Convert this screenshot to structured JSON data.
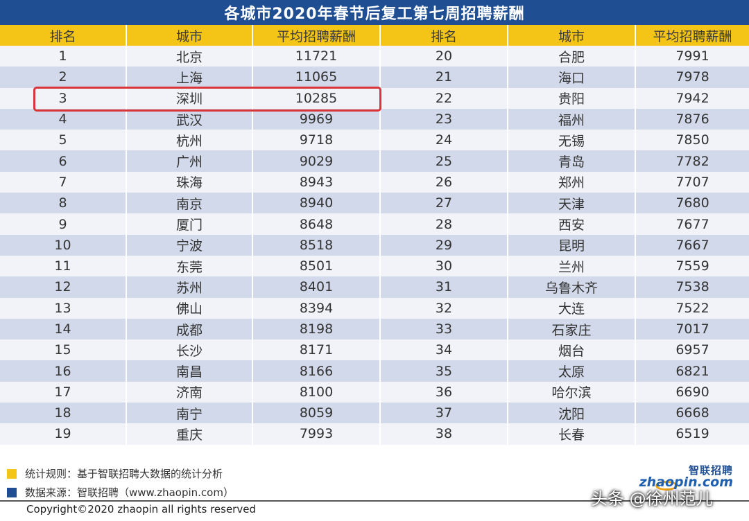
{
  "title": "各城市2020年春节后复工第七周招聘薪酬",
  "columns": [
    "排名",
    "城市",
    "平均招聘薪酬",
    "排名",
    "城市",
    "平均招聘薪酬"
  ],
  "rows": [
    [
      "1",
      "北京",
      "11721",
      "20",
      "合肥",
      "7991"
    ],
    [
      "2",
      "上海",
      "11065",
      "21",
      "海口",
      "7978"
    ],
    [
      "3",
      "深圳",
      "10285",
      "22",
      "贵阳",
      "7942"
    ],
    [
      "4",
      "武汉",
      "9969",
      "23",
      "福州",
      "7876"
    ],
    [
      "5",
      "杭州",
      "9718",
      "24",
      "无锡",
      "7850"
    ],
    [
      "6",
      "广州",
      "9029",
      "25",
      "青岛",
      "7782"
    ],
    [
      "7",
      "珠海",
      "8943",
      "26",
      "郑州",
      "7707"
    ],
    [
      "8",
      "南京",
      "8940",
      "27",
      "天津",
      "7680"
    ],
    [
      "9",
      "厦门",
      "8648",
      "28",
      "西安",
      "7677"
    ],
    [
      "10",
      "宁波",
      "8518",
      "29",
      "昆明",
      "7667"
    ],
    [
      "11",
      "东莞",
      "8501",
      "30",
      "兰州",
      "7559"
    ],
    [
      "12",
      "苏州",
      "8401",
      "31",
      "乌鲁木齐",
      "7538"
    ],
    [
      "13",
      "佛山",
      "8394",
      "32",
      "大连",
      "7522"
    ],
    [
      "14",
      "成都",
      "8198",
      "33",
      "石家庄",
      "7017"
    ],
    [
      "15",
      "长沙",
      "8171",
      "34",
      "烟台",
      "6957"
    ],
    [
      "16",
      "南昌",
      "8166",
      "35",
      "太原",
      "6821"
    ],
    [
      "17",
      "济南",
      "8100",
      "36",
      "哈尔滨",
      "6690"
    ],
    [
      "18",
      "南宁",
      "8059",
      "37",
      "沈阳",
      "6668"
    ],
    [
      "19",
      "重庆",
      "7993",
      "38",
      "长春",
      "6519"
    ]
  ],
  "highlighted_row_rank": "3",
  "notes": [
    {
      "text": "统计规则：基于智联招聘大数据的统计分析",
      "color": "#f4c417"
    },
    {
      "text": "数据来源：智联招聘（www.zhaopin.com）",
      "color": "#1f4e93"
    }
  ],
  "copyright": "Copyright©2020 zhaopin all rights reserved",
  "logo": {
    "zh": "智联招聘",
    "en": "zhaopin.com"
  },
  "watermark": "头条 @徐州范儿",
  "colors": {
    "title_bg": "#1f4e93",
    "header_bg": "#f4c417",
    "row_light": "#f1f3f8",
    "row_dark": "#d2d9ea",
    "highlight": "#d9343a"
  }
}
